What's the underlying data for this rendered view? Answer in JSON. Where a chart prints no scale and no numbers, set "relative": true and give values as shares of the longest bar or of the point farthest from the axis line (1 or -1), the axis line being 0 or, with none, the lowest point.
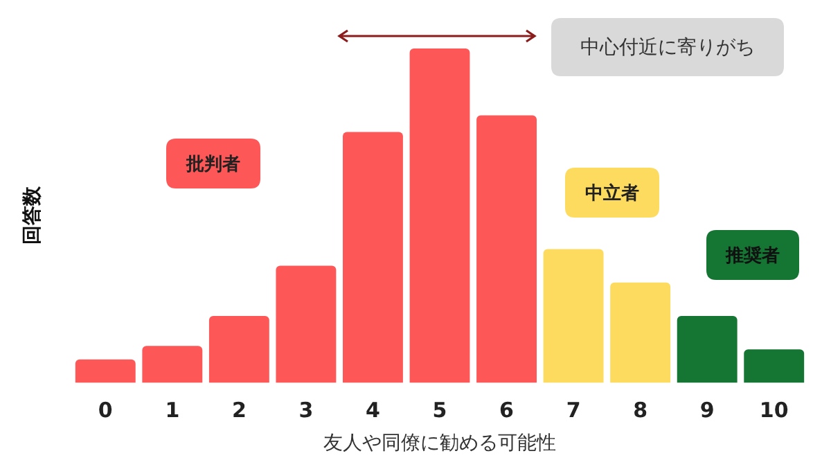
{
  "chart_data": {
    "type": "bar",
    "relative": true,
    "xlabel": "友人や同僚に勧める可能性",
    "ylabel": "回答数",
    "categories": [
      "0",
      "1",
      "2",
      "3",
      "4",
      "5",
      "6",
      "7",
      "8",
      "9",
      "10"
    ],
    "values": [
      0.07,
      0.11,
      0.2,
      0.35,
      0.75,
      1,
      0.8,
      0.4,
      0.3,
      0.2,
      0.1
    ],
    "colors": [
      "#fd5757",
      "#fd5757",
      "#fd5757",
      "#fd5757",
      "#fd5757",
      "#fd5757",
      "#fd5757",
      "#fddb5e",
      "#fddb5e",
      "#157533",
      "#157533"
    ],
    "annotations": [
      "中心付近に寄りがち",
      "批判者",
      "中立者",
      "推奨者"
    ]
  }
}
